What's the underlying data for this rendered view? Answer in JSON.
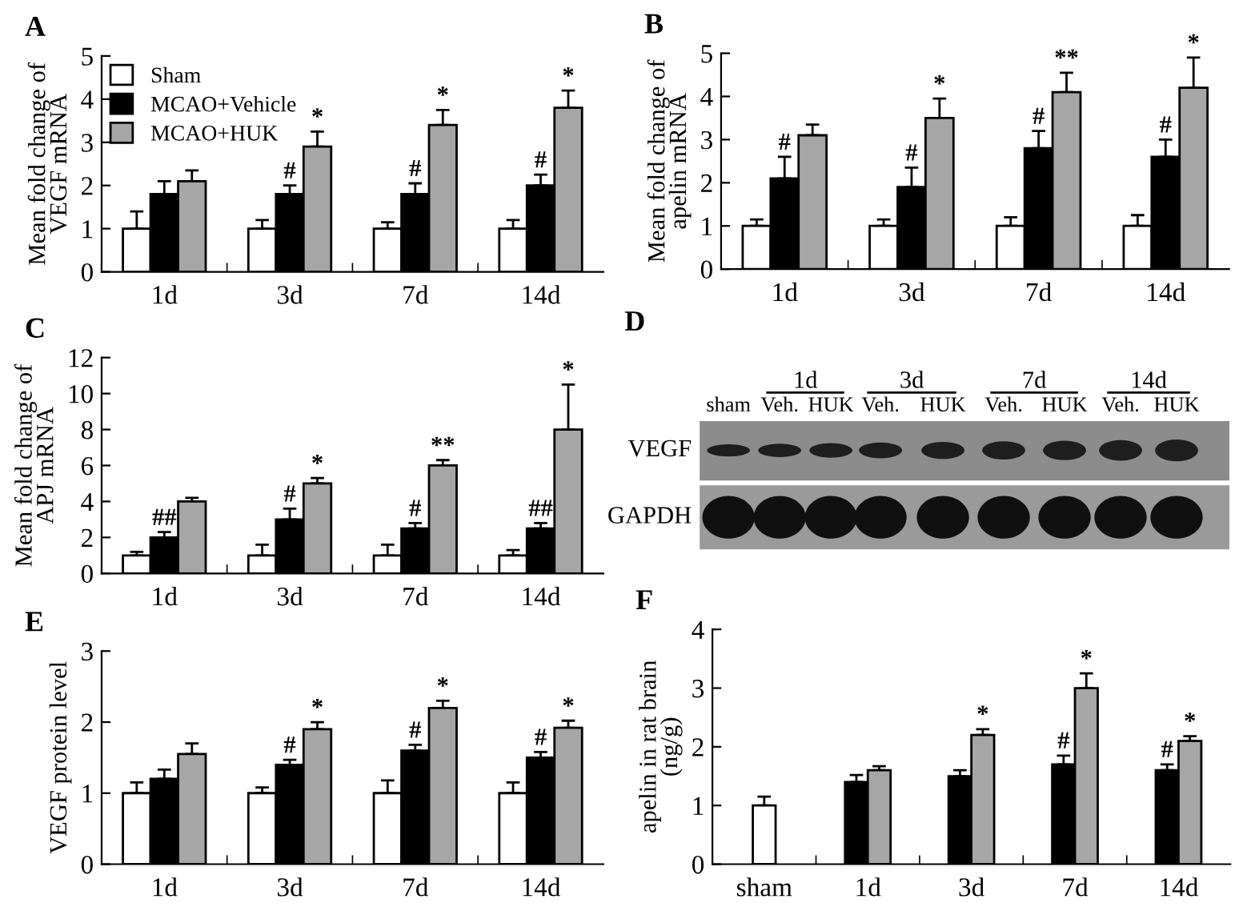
{
  "chart_data": [
    {
      "type": "bar",
      "title": "A",
      "ylabel": "Mean fold change of\nVEGF mRNA",
      "categories": [
        "1d",
        "3d",
        "7d",
        "14d"
      ],
      "ylim": [
        0,
        5
      ],
      "yticks": [
        0,
        1,
        2,
        3,
        4,
        5
      ],
      "legend": "top left",
      "series": [
        {
          "name": "Sham",
          "color": "#ffffff",
          "values": [
            1,
            1,
            1,
            1
          ],
          "errors": [
            0.4,
            0.2,
            0.15,
            0.2
          ],
          "value_labels": [
            null,
            null,
            null,
            null
          ]
        },
        {
          "name": "MCAO+Vehicle",
          "color": "#000000",
          "values": [
            1.8,
            1.8,
            1.8,
            2.0
          ],
          "errors": [
            0.3,
            0.2,
            0.25,
            0.25
          ],
          "value_labels": [
            null,
            "#",
            "#",
            "#"
          ]
        },
        {
          "name": "MCAO+HUK",
          "color": "#a6a6a6",
          "values": [
            2.1,
            2.9,
            3.4,
            3.8
          ],
          "errors": [
            0.25,
            0.35,
            0.35,
            0.4
          ],
          "value_labels": [
            null,
            "*",
            "*",
            "*"
          ]
        }
      ]
    },
    {
      "type": "bar",
      "title": "B",
      "ylabel": "Mean fold change of\napelin mRNA",
      "categories": [
        "1d",
        "3d",
        "7d",
        "14d"
      ],
      "ylim": [
        0,
        5
      ],
      "yticks": [
        0,
        1,
        2,
        3,
        4,
        5
      ],
      "series": [
        {
          "color": "#ffffff",
          "values": [
            1,
            1,
            1,
            1
          ],
          "errors": [
            0.15,
            0.15,
            0.2,
            0.25
          ],
          "value_labels": [
            null,
            null,
            null,
            null
          ]
        },
        {
          "color": "#000000",
          "values": [
            2.1,
            1.9,
            2.8,
            2.6
          ],
          "errors": [
            0.5,
            0.45,
            0.4,
            0.4
          ],
          "value_labels": [
            "#",
            "#",
            "#",
            "#"
          ]
        },
        {
          "color": "#a6a6a6",
          "values": [
            3.1,
            3.5,
            4.1,
            4.2
          ],
          "errors": [
            0.25,
            0.45,
            0.45,
            0.7
          ],
          "value_labels": [
            null,
            "*",
            "**",
            "*"
          ]
        }
      ]
    },
    {
      "type": "bar",
      "title": "C",
      "ylabel": "Mean fold change of\nAPJ mRNA",
      "categories": [
        "1d",
        "3d",
        "7d",
        "14d"
      ],
      "ylim": [
        0,
        12
      ],
      "yticks": [
        0,
        2,
        4,
        6,
        8,
        10,
        12
      ],
      "series": [
        {
          "color": "#ffffff",
          "values": [
            1,
            1,
            1,
            1
          ],
          "errors": [
            0.2,
            0.6,
            0.6,
            0.3
          ],
          "value_labels": [
            null,
            null,
            null,
            null
          ]
        },
        {
          "color": "#000000",
          "values": [
            2,
            3,
            2.5,
            2.5
          ],
          "errors": [
            0.3,
            0.6,
            0.3,
            0.3
          ],
          "value_labels": [
            "##",
            "#",
            "#",
            "##"
          ]
        },
        {
          "color": "#a6a6a6",
          "values": [
            4,
            5,
            6,
            8
          ],
          "errors": [
            0.2,
            0.3,
            0.3,
            2.5
          ],
          "value_labels": [
            null,
            "*",
            "**",
            "*"
          ]
        }
      ]
    },
    {
      "type": "other",
      "title": "D",
      "annotations": [
        "sham",
        "1d",
        "Veh.",
        "HUK",
        "3d",
        "Veh.",
        "HUK",
        "7d",
        "Veh.",
        "HUK",
        "14d",
        "Veh.",
        "HUK",
        "VEGF",
        "GAPDH"
      ]
    },
    {
      "type": "bar",
      "title": "E",
      "ylabel": "VEGF protein level",
      "categories": [
        "1d",
        "3d",
        "7d",
        "14d"
      ],
      "ylim": [
        0,
        3
      ],
      "yticks": [
        0,
        1,
        2,
        3
      ],
      "series": [
        {
          "color": "#ffffff",
          "values": [
            1,
            1,
            1,
            1
          ],
          "errors": [
            0.15,
            0.08,
            0.18,
            0.15
          ],
          "value_labels": [
            null,
            null,
            null,
            null
          ]
        },
        {
          "color": "#000000",
          "values": [
            1.2,
            1.4,
            1.6,
            1.5
          ],
          "errors": [
            0.13,
            0.07,
            0.08,
            0.08
          ],
          "value_labels": [
            null,
            "#",
            "#",
            "#"
          ]
        },
        {
          "color": "#a6a6a6",
          "values": [
            1.55,
            1.9,
            2.2,
            1.92
          ],
          "errors": [
            0.15,
            0.1,
            0.1,
            0.1
          ],
          "value_labels": [
            null,
            "*",
            "*",
            "*"
          ]
        }
      ]
    },
    {
      "type": "bar",
      "title": "F",
      "ylabel": "apelin in rat brain\n(ng/g)",
      "categories": [
        "sham",
        "1d",
        "3d",
        "7d",
        "14d"
      ],
      "ylim": [
        0,
        4
      ],
      "yticks": [
        0,
        1,
        2,
        3,
        4
      ],
      "series": [
        {
          "color": "#ffffff",
          "values": [
            1,
            null,
            null,
            null,
            null
          ],
          "errors": [
            0.15,
            null,
            null,
            null,
            null
          ],
          "value_labels": [
            null,
            null,
            null,
            null,
            null
          ]
        },
        {
          "color": "#000000",
          "values": [
            null,
            1.4,
            1.5,
            1.7,
            1.6
          ],
          "errors": [
            null,
            0.12,
            0.1,
            0.15,
            0.1
          ],
          "value_labels": [
            null,
            null,
            null,
            "#",
            "#"
          ]
        },
        {
          "color": "#a6a6a6",
          "values": [
            null,
            1.6,
            2.2,
            3.0,
            2.1
          ],
          "errors": [
            null,
            0.07,
            0.1,
            0.25,
            0.08
          ],
          "value_labels": [
            null,
            null,
            "*",
            "*",
            "*"
          ]
        }
      ]
    }
  ]
}
